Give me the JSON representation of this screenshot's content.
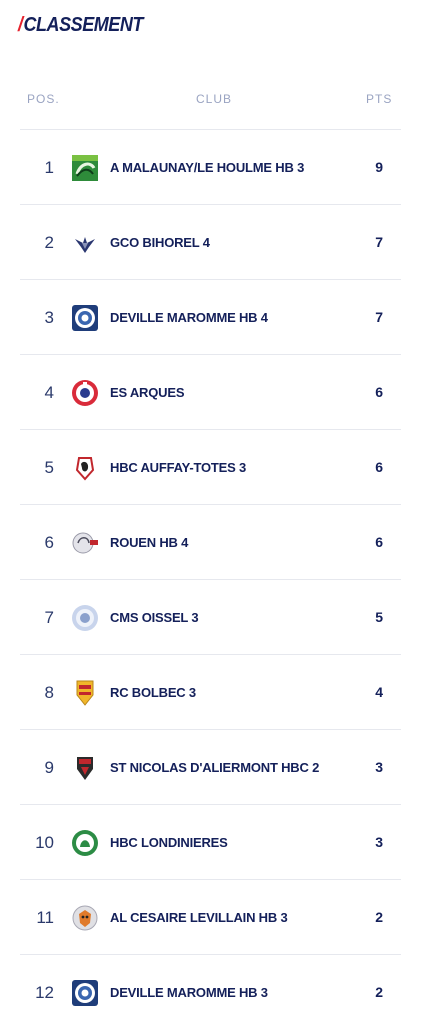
{
  "title": {
    "slash": "/",
    "text": "CLASSEMENT"
  },
  "columns": {
    "pos": "POS.",
    "club": "CLUB",
    "pts": "PTS"
  },
  "rows": [
    {
      "pos": "1",
      "club": "A MALAUNAY/LE HOULME HB 3",
      "pts": "9",
      "logo_icon": "malaunay-logo-icon"
    },
    {
      "pos": "2",
      "club": "GCO BIHOREL 4",
      "pts": "7",
      "logo_icon": "bihorel-logo-icon"
    },
    {
      "pos": "3",
      "club": "DEVILLE MAROMME HB 4",
      "pts": "7",
      "logo_icon": "deville-logo-icon"
    },
    {
      "pos": "4",
      "club": "ES ARQUES",
      "pts": "6",
      "logo_icon": "arques-logo-icon"
    },
    {
      "pos": "5",
      "club": "HBC AUFFAY-TOTES 3",
      "pts": "6",
      "logo_icon": "auffay-logo-icon"
    },
    {
      "pos": "6",
      "club": "ROUEN HB 4",
      "pts": "6",
      "logo_icon": "rouen-logo-icon"
    },
    {
      "pos": "7",
      "club": "CMS OISSEL 3",
      "pts": "5",
      "logo_icon": "oissel-logo-icon"
    },
    {
      "pos": "8",
      "club": "RC BOLBEC 3",
      "pts": "4",
      "logo_icon": "bolbec-logo-icon"
    },
    {
      "pos": "9",
      "club": "ST NICOLAS D'ALIERMONT HBC 2",
      "pts": "3",
      "logo_icon": "aliermont-logo-icon"
    },
    {
      "pos": "10",
      "club": "HBC LONDINIERES",
      "pts": "3",
      "logo_icon": "londinieres-logo-icon"
    },
    {
      "pos": "11",
      "club": "AL CESAIRE LEVILLAIN HB 3",
      "pts": "2",
      "logo_icon": "levillain-logo-icon"
    },
    {
      "pos": "12",
      "club": "DEVILLE MAROMME HB 3",
      "pts": "2",
      "logo_icon": "deville-logo-icon"
    }
  ],
  "colors": {
    "accent": "#e6232e",
    "navy": "#14205a",
    "muted": "#9aa4c2",
    "divider": "#e6e8ee"
  }
}
